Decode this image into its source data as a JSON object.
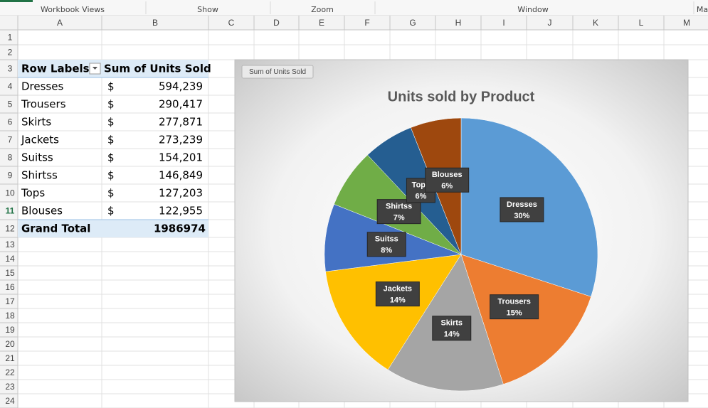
{
  "ribbon": {
    "groups": [
      "Workbook Views",
      "Show",
      "Zoom",
      "Window",
      "Ma"
    ]
  },
  "sheet": {
    "columns": [
      "A",
      "B",
      "C",
      "D",
      "E",
      "F",
      "G",
      "H",
      "I",
      "J",
      "K",
      "L",
      "M"
    ],
    "rows": [
      1,
      2,
      3,
      4,
      5,
      6,
      7,
      8,
      9,
      10,
      11,
      12,
      13,
      14,
      15,
      16,
      17,
      18,
      19,
      20,
      21,
      22,
      23,
      24
    ]
  },
  "table": {
    "header": [
      "Row Labels",
      "Sum of Units Sold"
    ],
    "rows": [
      [
        "Dresses",
        "$",
        "594,239"
      ],
      [
        "Trousers",
        "$",
        "290,417"
      ],
      [
        "Skirts",
        "$",
        "277,871"
      ],
      [
        "Jackets",
        "$",
        "273,239"
      ],
      [
        "Suitss",
        "$",
        "154,201"
      ],
      [
        "Shirtss",
        "$",
        "146,849"
      ],
      [
        "Tops",
        "$",
        "127,203"
      ],
      [
        "Blouses",
        "$",
        "122,955"
      ]
    ],
    "total": [
      "Grand Total",
      "1986974"
    ]
  },
  "chart_data": {
    "type": "pie",
    "title": "Units sold by Product",
    "field_button": "Sum of Units Sold",
    "categories": [
      "Dresses",
      "Trousers",
      "Skirts",
      "Jackets",
      "Suitss",
      "Shirtss",
      "Tops",
      "Blouses"
    ],
    "values": [
      30,
      15,
      14,
      14,
      8,
      7,
      6,
      6
    ],
    "value_labels": [
      "30%",
      "15%",
      "14%",
      "14%",
      "8%",
      "7%",
      "6%",
      "6%"
    ],
    "colors": [
      "#5B9BD5",
      "#ED7D31",
      "#A5A5A5",
      "#FFC000",
      "#4472C4",
      "#70AD47",
      "#255E91",
      "#9E480E"
    ]
  }
}
